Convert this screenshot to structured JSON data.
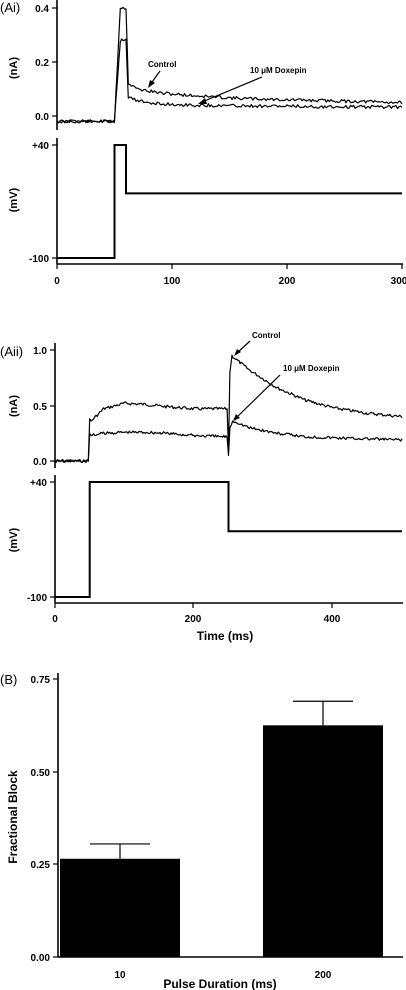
{
  "chart_data": [
    {
      "panel": "(Ai)",
      "type": "line",
      "ylabel": "(nA)",
      "ylim": [
        -0.02,
        0.4
      ],
      "xlim": [
        0,
        300
      ],
      "yticks": [
        "0.0",
        "0.2",
        "0.4"
      ],
      "ytick_values": [
        0.0,
        0.2,
        0.4
      ],
      "annotations": [
        "Control",
        "10 μM Doxepin"
      ],
      "series": [
        {
          "name": "Control",
          "x": [
            0,
            50,
            55,
            60,
            62,
            70,
            90,
            120,
            160,
            200,
            250,
            300
          ],
          "y": [
            -0.02,
            -0.02,
            0.4,
            0.4,
            0.12,
            0.1,
            0.085,
            0.075,
            0.065,
            0.06,
            0.055,
            0.05
          ]
        },
        {
          "name": "10 μM Doxepin",
          "x": [
            0,
            50,
            55,
            60,
            62,
            70,
            90,
            120,
            160,
            200,
            250,
            300
          ],
          "y": [
            -0.02,
            -0.02,
            0.28,
            0.28,
            0.07,
            0.055,
            0.045,
            0.04,
            0.038,
            0.036,
            0.034,
            0.033
          ]
        }
      ]
    },
    {
      "panel": "(Ai)",
      "type": "line",
      "ylabel": "(mV)",
      "ylim": [
        -100,
        40
      ],
      "xlim": [
        0,
        300
      ],
      "yticks": [
        "+40",
        "-100"
      ],
      "ytick_values": [
        40,
        -100
      ],
      "xticks": [
        "0",
        "100",
        "200",
        "300"
      ],
      "xtick_values": [
        0,
        100,
        200,
        300
      ],
      "series": [
        {
          "x": [
            0,
            50,
            50,
            60,
            60,
            300
          ],
          "y": [
            -100,
            -100,
            40,
            40,
            -20,
            -20
          ]
        }
      ]
    },
    {
      "panel": "(Aii)",
      "type": "line",
      "ylabel": "(nA)",
      "ylim": [
        0,
        1.0
      ],
      "xlim": [
        0,
        500
      ],
      "yticks": [
        "0.0",
        "0.5",
        "1.0"
      ],
      "ytick_values": [
        0,
        0.5,
        1.0
      ],
      "annotations": [
        "Control",
        "10 μM Doxepin"
      ],
      "series": [
        {
          "name": "Control",
          "x": [
            0,
            48,
            50,
            52,
            70,
            100,
            130,
            160,
            200,
            240,
            248,
            250,
            252,
            255,
            260,
            280,
            320,
            360,
            400,
            450,
            500
          ],
          "y": [
            0,
            0,
            0.38,
            0.36,
            0.47,
            0.52,
            0.51,
            0.49,
            0.47,
            0.47,
            0.47,
            0.1,
            0.8,
            0.95,
            0.92,
            0.82,
            0.66,
            0.55,
            0.48,
            0.43,
            0.4
          ]
        },
        {
          "name": "10 μM Doxepin",
          "x": [
            0,
            48,
            50,
            52,
            70,
            100,
            130,
            160,
            200,
            240,
            248,
            250,
            252,
            256,
            262,
            280,
            320,
            360,
            400,
            450,
            500
          ],
          "y": [
            0,
            0,
            0.25,
            0.23,
            0.25,
            0.26,
            0.26,
            0.25,
            0.23,
            0.22,
            0.22,
            0.05,
            0.3,
            0.36,
            0.35,
            0.3,
            0.25,
            0.22,
            0.21,
            0.2,
            0.19
          ]
        }
      ]
    },
    {
      "panel": "(Aii)",
      "type": "line",
      "xlabel": "Time (ms)",
      "ylabel": "(mV)",
      "ylim": [
        -100,
        40
      ],
      "xlim": [
        0,
        500
      ],
      "yticks": [
        "+40",
        "-100"
      ],
      "ytick_values": [
        40,
        -100
      ],
      "xticks": [
        "0",
        "200",
        "400"
      ],
      "xtick_values": [
        0,
        200,
        400
      ],
      "series": [
        {
          "x": [
            0,
            50,
            50,
            250,
            250,
            500
          ],
          "y": [
            -100,
            -100,
            40,
            40,
            -20,
            -20
          ]
        }
      ]
    },
    {
      "panel": "(B)",
      "type": "bar",
      "xlabel": "Pulse Duration (ms)",
      "ylabel": "Fractional Block",
      "categories": [
        "10",
        "200"
      ],
      "values": [
        0.265,
        0.625
      ],
      "errors": [
        0.04,
        0.065
      ],
      "ylim": [
        0,
        0.75
      ],
      "yticks": [
        "0.00",
        "0.25",
        "0.50",
        "0.75"
      ],
      "ytick_values": [
        0,
        0.25,
        0.5,
        0.75
      ]
    }
  ]
}
